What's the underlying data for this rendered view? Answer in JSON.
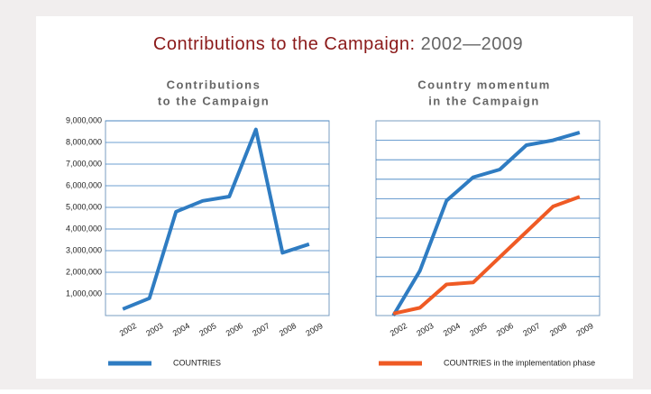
{
  "header": {
    "title": "Contributions to the Campaign:",
    "years": "2002—2009"
  },
  "chart_data": [
    {
      "type": "line",
      "title": [
        "Contributions",
        "to the Campaign"
      ],
      "categories": [
        "2002",
        "2003",
        "2004",
        "2005",
        "2006",
        "2007",
        "2008",
        "2009"
      ],
      "series": [
        {
          "name": "COUNTRIES",
          "color": "#2f7cc2",
          "values": [
            300000,
            800000,
            4800000,
            5300000,
            5500000,
            8600000,
            2900000,
            3300000
          ]
        }
      ],
      "ylim": [
        0,
        9000000
      ],
      "yticks": [
        {
          "value": 1000000,
          "label": "1,000,000"
        },
        {
          "value": 2000000,
          "label": "2,000,000"
        },
        {
          "value": 3000000,
          "label": "3,000,000"
        },
        {
          "value": 4000000,
          "label": "4,000,000"
        },
        {
          "value": 5000000,
          "label": "5,000,000"
        },
        {
          "value": 6000000,
          "label": "6,000,000"
        },
        {
          "value": 7000000,
          "label": "7,000,000"
        },
        {
          "value": 8000000,
          "label": "8,000,000"
        },
        {
          "value": 9000000,
          "label": "9,000,000"
        }
      ],
      "grid": true
    },
    {
      "type": "line",
      "title": [
        "Country momentum",
        "in the Campaign"
      ],
      "categories": [
        "2002",
        "2003",
        "2004",
        "2005",
        "2006",
        "2007",
        "2008",
        "2009"
      ],
      "series": [
        {
          "color": "#2f7cc2",
          "values": [
            0,
            2.3,
            5.9,
            7.1,
            7.5,
            8.75,
            9.0,
            9.4
          ]
        },
        {
          "name": "COUNTRIES in the implementation phase",
          "color": "#ef5a24",
          "values": [
            0.1,
            0.4,
            1.6,
            1.7,
            3.0,
            4.3,
            5.6,
            6.1
          ]
        }
      ],
      "ylim": [
        0,
        10
      ],
      "yticks": [
        1,
        2,
        3,
        4,
        5,
        6,
        7,
        8,
        9
      ],
      "ytick_labels": false,
      "grid": true
    }
  ]
}
